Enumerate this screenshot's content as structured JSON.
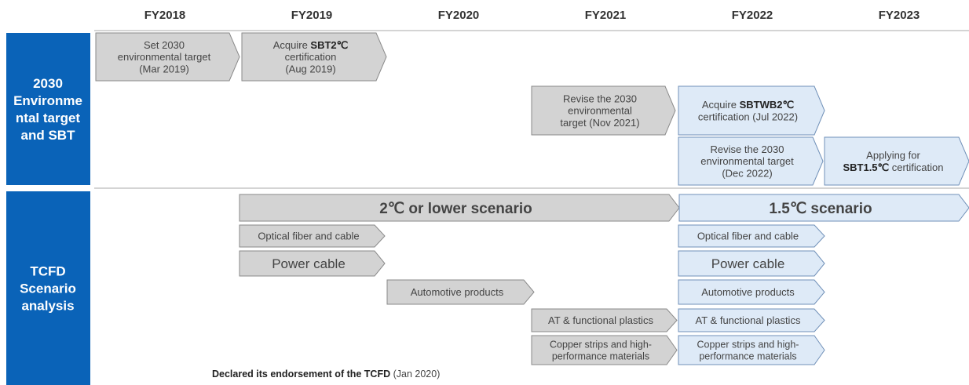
{
  "header": {
    "years": [
      "FY2018",
      "FY2019",
      "FY2020",
      "FY2021",
      "FY2022",
      "FY2023"
    ]
  },
  "sections": [
    {
      "lines": [
        "2030",
        "Environme",
        "ntal target",
        "and SBT"
      ]
    },
    {
      "lines": [
        "TCFD",
        "Scenario",
        "analysis"
      ]
    }
  ],
  "items": [
    {
      "lines": [
        [
          "Set 2030"
        ],
        [
          "environmental target"
        ],
        [
          "(Mar 2019)"
        ]
      ]
    },
    {
      "lines": [
        [
          "Acquire ",
          {
            "bold": "SBT2℃"
          }
        ],
        [
          "certification"
        ],
        [
          "(Aug 2019)"
        ]
      ]
    },
    {
      "lines": [
        [
          "Revise the 2030"
        ],
        [
          "environmental"
        ],
        [
          "target (Nov 2021)"
        ]
      ]
    },
    {
      "lines": [
        [
          "Acquire ",
          {
            "bold": "SBTWB2℃"
          }
        ],
        [
          "certification (Jul 2022)"
        ]
      ]
    },
    {
      "lines": [
        [
          "Revise the 2030"
        ],
        [
          "environmental target"
        ],
        [
          "(Dec 2022)"
        ]
      ]
    },
    {
      "lines": [
        [
          "Applying for"
        ],
        [
          {
            "bold": "SBT1.5℃"
          },
          " certification"
        ]
      ]
    },
    {
      "lines": [
        [
          "2℃ or lower scenario"
        ]
      ]
    },
    {
      "lines": [
        [
          "1.5℃ scenario"
        ]
      ]
    },
    {
      "lines": [
        [
          "Optical fiber and cable"
        ]
      ]
    },
    {
      "lines": [
        [
          "Power cable"
        ]
      ]
    },
    {
      "lines": [
        [
          "Automotive products"
        ]
      ]
    },
    {
      "lines": [
        [
          "AT & functional plastics"
        ]
      ]
    },
    {
      "lines": [
        [
          "Copper strips and high-"
        ],
        [
          "performance materials"
        ]
      ]
    },
    {
      "lines": [
        [
          "Optical fiber and cable"
        ]
      ]
    },
    {
      "lines": [
        [
          "Power cable"
        ]
      ]
    },
    {
      "lines": [
        [
          "Automotive products"
        ]
      ]
    },
    {
      "lines": [
        [
          "AT & functional plastics"
        ]
      ]
    },
    {
      "lines": [
        [
          "Copper strips and high-"
        ],
        [
          "performance materials"
        ]
      ]
    }
  ],
  "footer": {
    "bold": "Declared its endorsement of the TCFD",
    "note": " (Jan 2020)"
  }
}
